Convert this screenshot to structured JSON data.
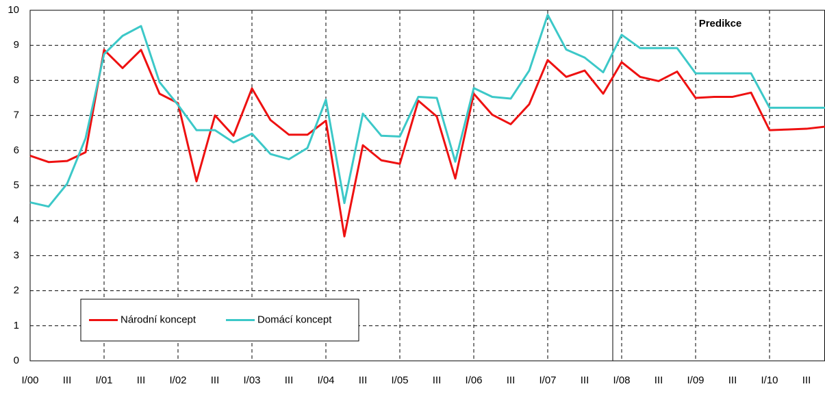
{
  "chart_data": {
    "type": "line",
    "categories": [
      "I/00",
      null,
      "III",
      null,
      "I/01",
      null,
      "III",
      null,
      "I/02",
      null,
      "III",
      null,
      "I/03",
      null,
      "III",
      null,
      "I/04",
      null,
      "III",
      null,
      "I/05",
      null,
      "III",
      null,
      "I/06",
      null,
      "III",
      null,
      "I/07",
      null,
      "III",
      null,
      "I/08",
      null,
      "III",
      null,
      "I/09",
      null,
      "III",
      null,
      "I/10",
      null,
      "III",
      null
    ],
    "series": [
      {
        "name": "Národní koncept",
        "color": "#ee1111",
        "values": [
          5.85,
          5.67,
          5.7,
          5.95,
          8.87,
          8.35,
          8.87,
          7.62,
          7.35,
          5.12,
          7.0,
          6.42,
          7.77,
          6.87,
          6.45,
          6.45,
          6.85,
          3.55,
          6.15,
          5.72,
          5.62,
          7.42,
          6.97,
          5.2,
          7.62,
          7.02,
          6.75,
          7.32,
          8.58,
          8.1,
          8.28,
          7.62,
          8.52,
          8.1,
          7.98,
          8.25,
          7.5,
          7.53,
          7.53,
          7.65,
          6.58,
          6.6,
          6.62,
          6.68
        ]
      },
      {
        "name": "Domácí koncept",
        "color": "#3cc8c8",
        "values": [
          4.52,
          4.4,
          5.05,
          6.35,
          8.75,
          9.27,
          9.55,
          7.95,
          7.3,
          6.58,
          6.58,
          6.23,
          6.48,
          5.9,
          5.75,
          6.07,
          7.45,
          4.5,
          7.05,
          6.42,
          6.4,
          7.53,
          7.5,
          5.68,
          7.78,
          7.53,
          7.48,
          8.28,
          9.87,
          8.88,
          8.65,
          8.23,
          9.3,
          8.92,
          8.92,
          8.92,
          8.2,
          8.2,
          8.2,
          8.2,
          7.22,
          7.22,
          7.22,
          7.22
        ]
      }
    ],
    "ylim": [
      0,
      10
    ],
    "yticks": [
      0,
      1,
      2,
      3,
      4,
      5,
      6,
      7,
      8,
      9,
      10
    ],
    "grid": true,
    "legend": "lower left",
    "annotation": "Predikce"
  }
}
